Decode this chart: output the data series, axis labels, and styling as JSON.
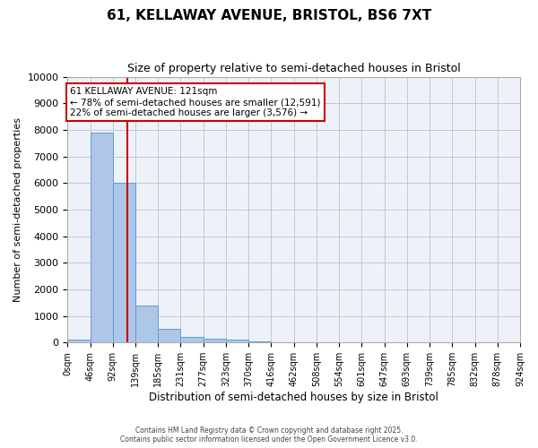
{
  "title_line1": "61, KELLAWAY AVENUE, BRISTOL, BS6 7XT",
  "title_line2": "Size of property relative to semi-detached houses in Bristol",
  "xlabel": "Distribution of semi-detached houses by size in Bristol",
  "ylabel": "Number of semi-detached properties",
  "bin_labels": [
    "0sqm",
    "46sqm",
    "92sqm",
    "139sqm",
    "185sqm",
    "231sqm",
    "277sqm",
    "323sqm",
    "370sqm",
    "416sqm",
    "462sqm",
    "508sqm",
    "554sqm",
    "601sqm",
    "647sqm",
    "693sqm",
    "739sqm",
    "785sqm",
    "832sqm",
    "878sqm",
    "924sqm"
  ],
  "bar_values": [
    120,
    7900,
    6000,
    1400,
    500,
    200,
    150,
    100,
    50,
    10,
    5,
    2,
    1,
    0,
    0,
    0,
    0,
    0,
    0,
    0
  ],
  "bar_color": "#aec6e8",
  "bar_edge_color": "#5a9fd4",
  "property_size": 121,
  "property_line_color": "#cc0000",
  "bin_width": 46,
  "annotation_title": "61 KELLAWAY AVENUE: 121sqm",
  "annotation_line2": "← 78% of semi-detached houses are smaller (12,591)",
  "annotation_line3": "22% of semi-detached houses are larger (3,576) →",
  "annotation_box_color": "#cc0000",
  "ylim": [
    0,
    10000
  ],
  "yticks": [
    0,
    1000,
    2000,
    3000,
    4000,
    5000,
    6000,
    7000,
    8000,
    9000,
    10000
  ],
  "grid_color": "#c0c8d8",
  "bg_color": "#eef2f8",
  "footer_line1": "Contains HM Land Registry data © Crown copyright and database right 2025.",
  "footer_line2": "Contains public sector information licensed under the Open Government Licence v3.0."
}
